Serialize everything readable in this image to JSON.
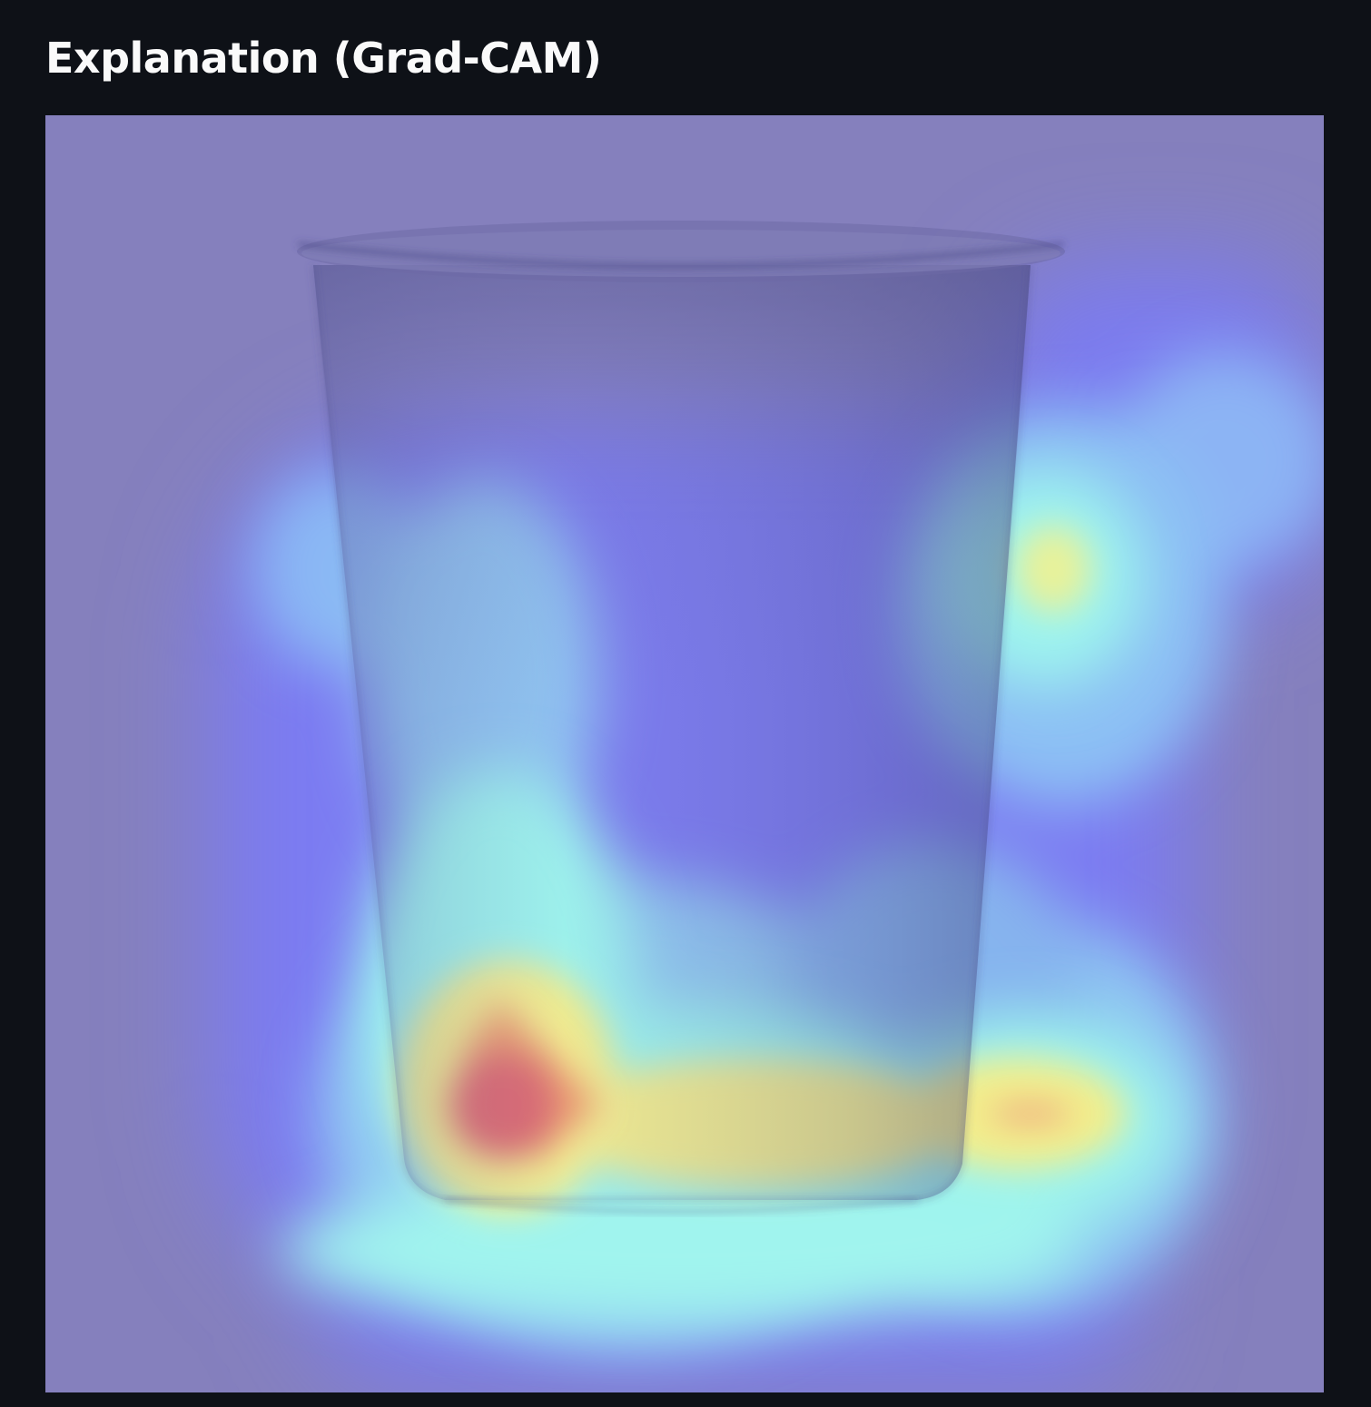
{
  "section": {
    "title": "Explanation (Grad-CAM)"
  },
  "image": {
    "subject_icon": "paper-cup-icon",
    "overlay": "grad-cam-heatmap",
    "colors": {
      "background": "#0e1117",
      "base_tint": "#8780bc",
      "cool": "#7b7bee",
      "light_blue": "#8fc2f2",
      "cyan": "#9cf6ee",
      "yellow": "#f6f08e",
      "red": "#e36272"
    }
  }
}
